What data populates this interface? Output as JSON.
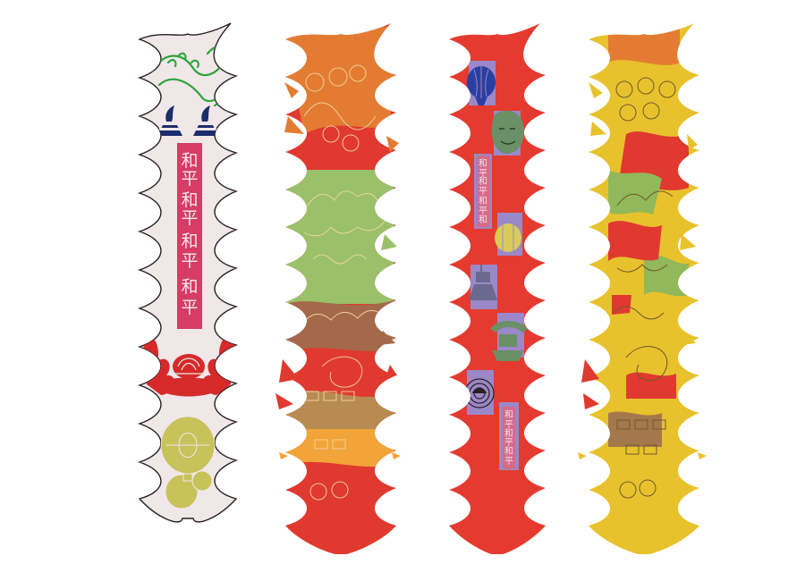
{
  "banners": [
    {
      "name": "banner-white",
      "palette": {
        "body": "#efe7e8",
        "stroke": "#2a1f22",
        "plaque": "#d63c65",
        "plaque_text": "#f7e8ef",
        "dragon": "#2fa23a",
        "ink": "#1d2d6b",
        "motif_red": "#d62a2a",
        "lantern": "#c8c25a"
      },
      "text_rows": [
        "和平",
        "和平",
        "和平",
        "和平",
        "和平"
      ]
    },
    {
      "name": "banner-orange-green-camouflage",
      "palette": {
        "orange": "#e37c32",
        "red": "#e0392f",
        "green": "#9bc06a",
        "brown": "#a4684a",
        "tan": "#b88b52",
        "gold": "#f2a339",
        "line": "#f0d6a6"
      }
    },
    {
      "name": "banner-red-icons",
      "palette": {
        "body": "#e53a2f",
        "tile": "#9a88c8",
        "balloon_blue": "#2a3fa2",
        "face": "#6b8f66",
        "lantern": "#d9cb59",
        "cup": "#6a6a8e",
        "text_plaque": "#d76a86"
      },
      "text_rows": [
        "和平",
        "和平",
        "和平",
        "和平"
      ],
      "text_rows_lower": [
        "和平",
        "和平",
        "和平",
        "和平"
      ]
    },
    {
      "name": "banner-yellow-camouflage",
      "palette": {
        "yellow": "#e8c22d",
        "red": "#e0392f",
        "green": "#91b85a",
        "brown": "#a5784c",
        "line": "#6e5a2c"
      }
    }
  ]
}
